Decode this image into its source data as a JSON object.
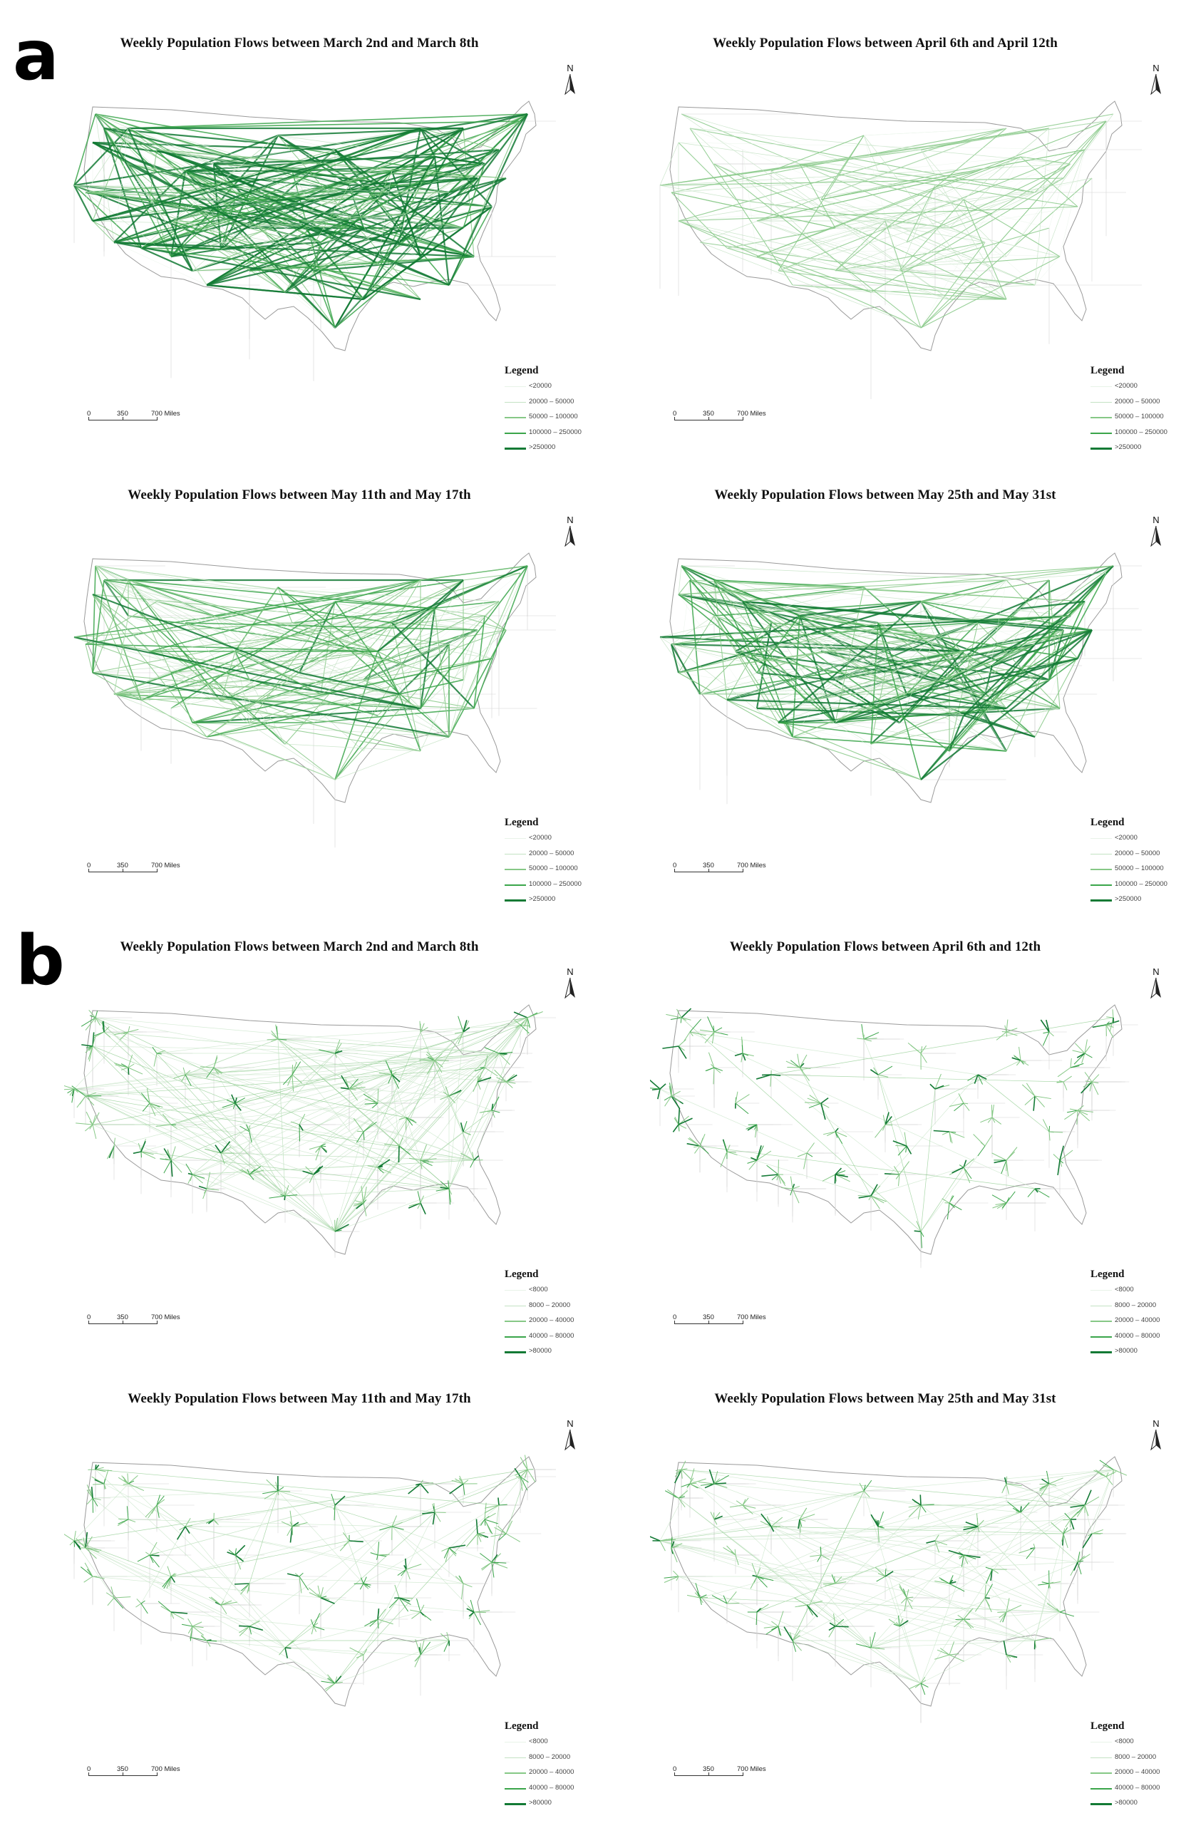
{
  "figure": {
    "sections": [
      {
        "label": "a",
        "network": "state",
        "legend_title": "Legend",
        "classes": [
          {
            "label": "<20000",
            "color": "#e8f3e8"
          },
          {
            "label": "20000 – 50000",
            "color": "#c3e2c3"
          },
          {
            "label": "50000 – 100000",
            "color": "#86c886"
          },
          {
            "label": "100000 – 250000",
            "color": "#3aa54a"
          },
          {
            "label": ">250000",
            "color": "#137a35"
          }
        ],
        "panels": [
          {
            "title": "Weekly Population Flows between March 2nd and March 8th",
            "intensity": 1.0
          },
          {
            "title": "Weekly Population Flows between April 6th and April 12th",
            "intensity": 0.5
          },
          {
            "title": "Weekly Population Flows between May 11th and May 17th",
            "intensity": 0.75
          },
          {
            "title": "Weekly Population Flows between May 25th and May 31st",
            "intensity": 0.88
          }
        ]
      },
      {
        "label": "b",
        "network": "county",
        "legend_title": "Legend",
        "classes": [
          {
            "label": "<8000",
            "color": "#e8f3e8"
          },
          {
            "label": "8000 – 20000",
            "color": "#c3e2c3"
          },
          {
            "label": "20000 – 40000",
            "color": "#86c886"
          },
          {
            "label": "40000 – 80000",
            "color": "#3aa54a"
          },
          {
            "label": ">80000",
            "color": "#137a35"
          }
        ],
        "panels": [
          {
            "title": "Weekly Population Flows between March 2nd and March 8th",
            "intensity": 1.0
          },
          {
            "title": "Weekly Population Flows between April 6th and 12th",
            "intensity": 0.35
          },
          {
            "title": "Weekly Population Flows between May 11th and May 17th",
            "intensity": 0.65
          },
          {
            "title": "Weekly Population Flows between May 25th and May 31st",
            "intensity": 0.8
          }
        ]
      }
    ],
    "north_arrow_label": "N",
    "scale_bar": {
      "labels": [
        "0",
        "350",
        "700 Miles"
      ]
    }
  }
}
